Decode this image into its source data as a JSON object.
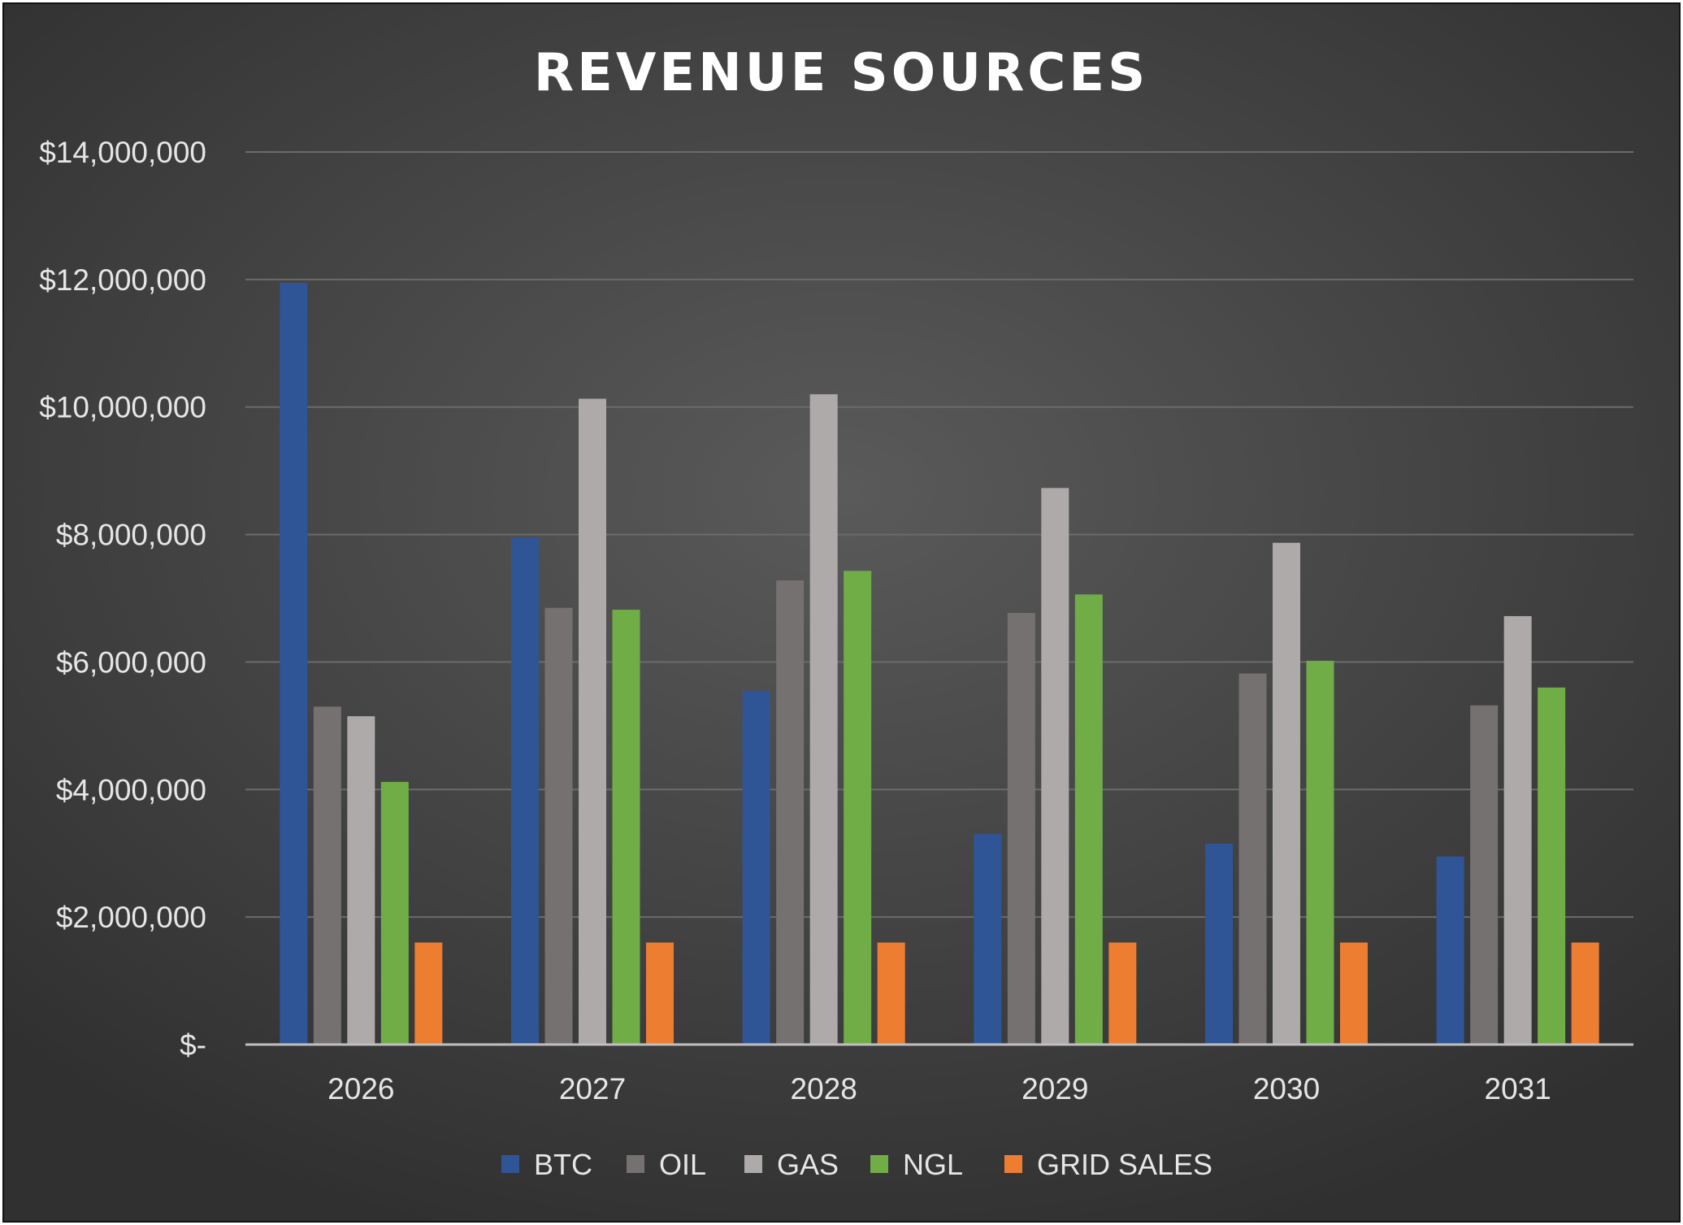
{
  "chart_data": {
    "type": "bar",
    "title": "REVENUE SOURCES",
    "xlabel": "",
    "ylabel": "",
    "categories": [
      "2026",
      "2027",
      "2028",
      "2029",
      "2030",
      "2031"
    ],
    "ylim": [
      0,
      14000000
    ],
    "yticks": [
      0,
      2000000,
      4000000,
      6000000,
      8000000,
      10000000,
      12000000,
      14000000
    ],
    "ytick_labels": [
      "$-",
      "$2,000,000",
      "$4,000,000",
      "$6,000,000",
      "$8,000,000",
      "$10,000,000",
      "$12,000,000",
      "$14,000,000"
    ],
    "grid": true,
    "legend_position": "bottom",
    "series": [
      {
        "name": "BTC",
        "color": "#2f5597",
        "values": [
          11950000,
          7950000,
          5550000,
          3300000,
          3150000,
          2950000
        ]
      },
      {
        "name": "OIL",
        "color": "#767171",
        "values": [
          5300000,
          6850000,
          7280000,
          6770000,
          5820000,
          5320000
        ]
      },
      {
        "name": "GAS",
        "color": "#aeaaaa",
        "values": [
          5150000,
          10130000,
          10200000,
          8730000,
          7870000,
          6720000
        ]
      },
      {
        "name": "NGL",
        "color": "#70ad47",
        "values": [
          4120000,
          6820000,
          7430000,
          7060000,
          6020000,
          5600000
        ]
      },
      {
        "name": "GRID SALES",
        "color": "#ed7d31",
        "values": [
          1600000,
          1600000,
          1600000,
          1600000,
          1600000,
          1600000
        ]
      }
    ]
  }
}
